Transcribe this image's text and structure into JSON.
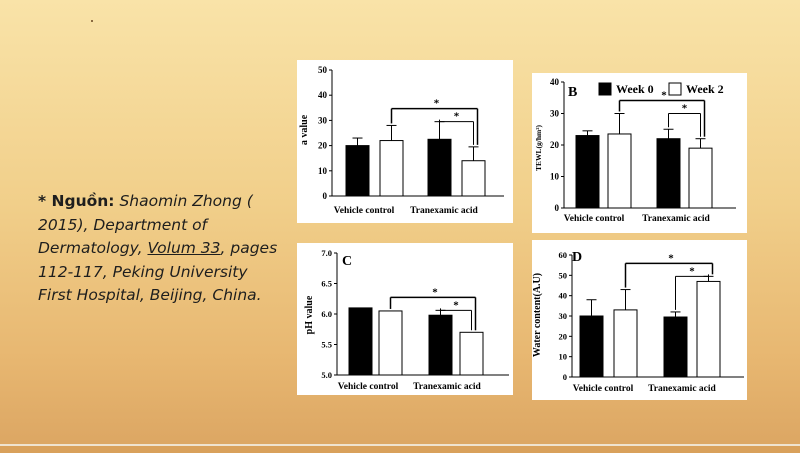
{
  "source": {
    "label": "* Nguồn:",
    "author": "Shaomin Zhong",
    "year_open": "(",
    "year_close": "2015), Department of",
    "line3_dept": "Dermatology,",
    "volume": "Volum 33",
    "pages": ", pages",
    "line4": "112-117, Peking University",
    "line5": "First Hospital, Beijing, China."
  },
  "colors": {
    "week0": "#000000",
    "week2": "#ffffff",
    "bg_top": "#f9e3a8",
    "bg_bottom": "#dba562"
  },
  "legend": {
    "week0": "Week 0",
    "week2": "Week 2"
  },
  "chart_data": [
    {
      "id": "A",
      "type": "bar",
      "panel_label": "",
      "ylabel": "a value",
      "ylim": [
        0,
        50
      ],
      "yticks": [
        "0",
        "10",
        "20",
        "30",
        "40",
        "50"
      ],
      "categories": [
        "Vehicle control",
        "Tranexamic acid"
      ],
      "series": [
        {
          "name": "Week 0",
          "values": [
            20,
            22.5
          ],
          "errors": [
            3,
            7
          ]
        },
        {
          "name": "Week 2",
          "values": [
            22,
            14
          ],
          "errors": [
            6,
            5.5
          ]
        }
      ],
      "significance": [
        "*",
        "*"
      ]
    },
    {
      "id": "B",
      "type": "bar",
      "panel_label": "B",
      "ylabel": "TEWL(g/hm²)",
      "ylim": [
        0,
        40
      ],
      "yticks": [
        "0",
        "10",
        "20",
        "30",
        "40"
      ],
      "categories": [
        "Vehicle control",
        "Tranexamic acid"
      ],
      "series": [
        {
          "name": "Week 0",
          "values": [
            23,
            22
          ],
          "errors": [
            1.5,
            3
          ]
        },
        {
          "name": "Week 2",
          "values": [
            23.5,
            19
          ],
          "errors": [
            6.5,
            3
          ]
        }
      ],
      "significance": [
        "*",
        "*"
      ]
    },
    {
      "id": "C",
      "type": "bar",
      "panel_label": "C",
      "ylabel": "pH value",
      "ylim": [
        5.0,
        7.0
      ],
      "yticks": [
        "5.0",
        "5.5",
        "6.0",
        "6.5",
        "7.0"
      ],
      "categories": [
        "Vehicle control",
        "Tranexamic acid"
      ],
      "series": [
        {
          "name": "Week 0",
          "values": [
            6.1,
            5.98
          ],
          "errors": [
            0,
            0.08
          ]
        },
        {
          "name": "Week 2",
          "values": [
            6.05,
            5.7
          ],
          "errors": [
            0,
            0
          ]
        }
      ],
      "significance": [
        "*",
        "*"
      ]
    },
    {
      "id": "D",
      "type": "bar",
      "panel_label": "D",
      "ylabel": "Water content(A.U)",
      "ylim": [
        0,
        60
      ],
      "yticks": [
        "0",
        "10",
        "20",
        "30",
        "40",
        "50",
        "60"
      ],
      "categories": [
        "Vehicle control",
        "Tranexamic acid"
      ],
      "series": [
        {
          "name": "Week 0",
          "values": [
            30,
            29.5
          ],
          "errors": [
            8,
            2.5
          ]
        },
        {
          "name": "Week 2",
          "values": [
            33,
            47
          ],
          "errors": [
            10,
            2.5
          ]
        }
      ],
      "significance": [
        "*",
        "*"
      ]
    }
  ]
}
